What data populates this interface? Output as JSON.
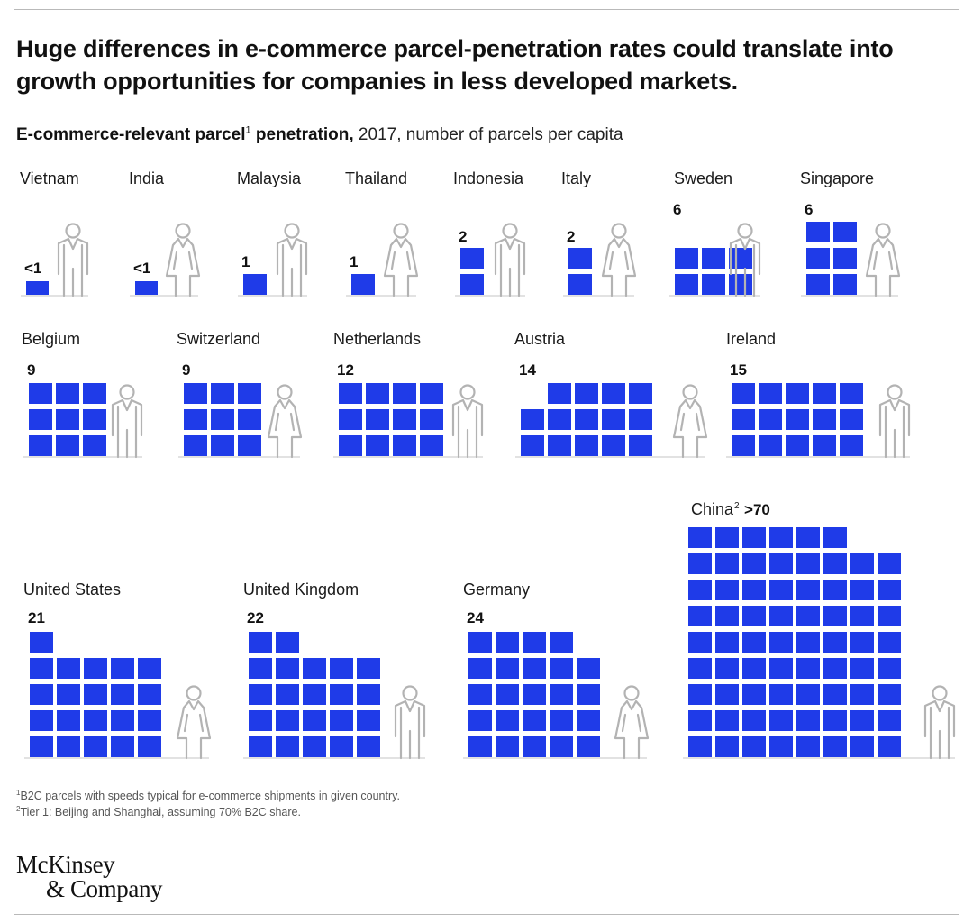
{
  "headline": "Huge differences in e-commerce parcel-penetration rates could translate into growth opportunities for companies in less developed markets.",
  "subtitle": {
    "bold": "E-commerce-relevant parcel",
    "sup": "1",
    "bold2": " penetration,",
    "regular": " 2017, number of parcels per capita"
  },
  "footnotes": [
    {
      "sup": "1",
      "text": "B2C parcels with speeds typical for e-commerce shipments in given country."
    },
    {
      "sup": "2",
      "text": "Tier 1: Beijing and Shanghai, assuming 70% B2C share."
    }
  ],
  "logo": {
    "line1": "McKinsey",
    "line2": "& Company"
  },
  "colors": {
    "accent": "#1f3be8",
    "figure": "#b3b3b3",
    "baseline": "#c6c6c6",
    "text": "#111111"
  },
  "chart_data": {
    "type": "pictogram",
    "unit": "number of parcels per capita",
    "categories": [
      "Vietnam",
      "India",
      "Malaysia",
      "Thailand",
      "Indonesia",
      "Italy",
      "Sweden",
      "Singapore",
      "Belgium",
      "Switzerland",
      "Netherlands",
      "Austria",
      "Ireland",
      "United States",
      "United Kingdom",
      "Germany",
      "China"
    ],
    "values": [
      0.5,
      0.5,
      1,
      1,
      2,
      2,
      6,
      6,
      9,
      9,
      12,
      14,
      15,
      21,
      22,
      24,
      70
    ],
    "labels": [
      "<1",
      "<1",
      "1",
      "1",
      "2",
      "2",
      "6",
      "6",
      "9",
      "9",
      "12",
      "14",
      "15",
      "21",
      "22",
      "24",
      ">70"
    ],
    "figures": [
      "male",
      "female",
      "male",
      "female",
      "male",
      "female",
      "male",
      "female",
      "male",
      "female",
      "male",
      "female",
      "male",
      "female",
      "male",
      "female",
      "male"
    ],
    "name_sups": [
      "",
      "",
      "",
      "",
      "",
      "",
      "",
      "",
      "",
      "",
      "",
      "",
      "",
      "",
      "",
      "",
      "2"
    ]
  }
}
